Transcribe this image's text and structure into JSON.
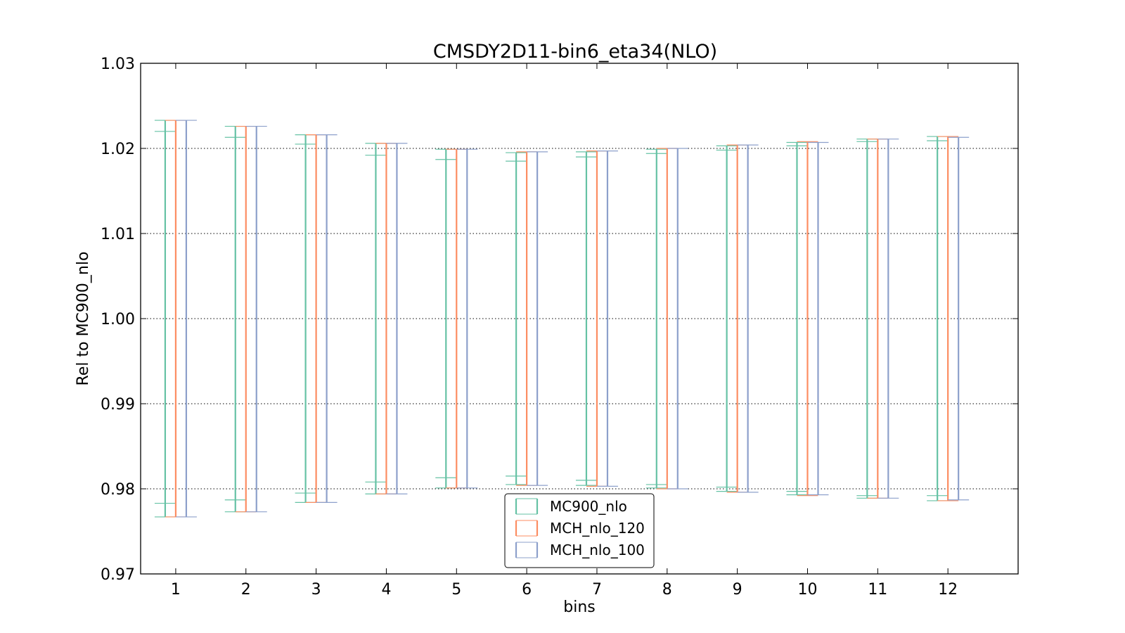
{
  "chart_data": {
    "type": "errorbar",
    "title": "CMSDY2D11-bin6_eta34(NLO)",
    "xlabel": "bins",
    "ylabel": "Rel to MC900_nlo",
    "ylim": [
      0.97,
      1.03
    ],
    "yticks": [
      "0.97",
      "0.98",
      "0.99",
      "1.00",
      "1.01",
      "1.02",
      "1.03"
    ],
    "categories": [
      "1",
      "2",
      "3",
      "4",
      "5",
      "6",
      "7",
      "8",
      "9",
      "10",
      "11",
      "12"
    ],
    "grid": "y-dotted",
    "legend_position": "bottom-center",
    "series": [
      {
        "name": "MC900_nlo",
        "color": "#66c2a5",
        "upper": [
          1.0233,
          1.0226,
          1.0216,
          1.0206,
          1.0199,
          1.0195,
          1.0196,
          1.0199,
          1.0203,
          1.0207,
          1.0211,
          1.0214
        ],
        "lower": [
          0.9767,
          0.9773,
          0.9784,
          0.9794,
          0.9801,
          0.9805,
          0.9804,
          0.9801,
          0.9797,
          0.9793,
          0.9789,
          0.9786
        ],
        "inner_upper": [
          1.022,
          1.0213,
          1.0205,
          1.0192,
          1.0187,
          1.0185,
          1.019,
          1.0194,
          1.0198,
          1.0203,
          1.0208,
          1.0209
        ],
        "inner_lower": [
          0.9783,
          0.9787,
          0.9795,
          0.9808,
          0.9813,
          0.9815,
          0.981,
          0.9805,
          0.9802,
          0.9797,
          0.9792,
          0.9792
        ]
      },
      {
        "name": "MCH_nlo_120",
        "color": "#fc8d62",
        "upper": [
          1.0233,
          1.0226,
          1.0216,
          1.0206,
          1.0199,
          1.0196,
          1.0197,
          1.02,
          1.0204,
          1.0208,
          1.0211,
          1.0214
        ],
        "lower": [
          0.9767,
          0.9773,
          0.9784,
          0.9794,
          0.9801,
          0.9804,
          0.9803,
          0.98,
          0.9796,
          0.9792,
          0.9789,
          0.9786
        ]
      },
      {
        "name": "MCH_nlo_100",
        "color": "#8da0cb",
        "upper": [
          1.0233,
          1.0226,
          1.0216,
          1.0206,
          1.0199,
          1.0196,
          1.0197,
          1.02,
          1.0204,
          1.0207,
          1.0211,
          1.0213
        ],
        "lower": [
          0.9767,
          0.9773,
          0.9784,
          0.9794,
          0.9801,
          0.9804,
          0.9803,
          0.98,
          0.9796,
          0.9793,
          0.9789,
          0.9787
        ]
      }
    ]
  }
}
